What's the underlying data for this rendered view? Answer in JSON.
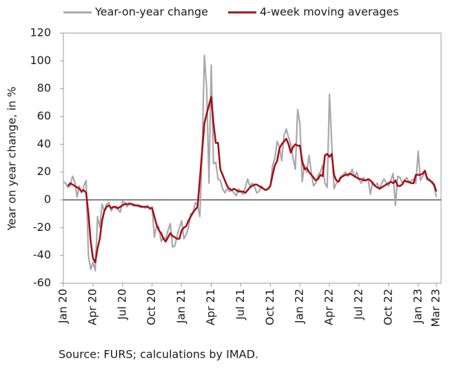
{
  "chart_data": {
    "type": "line",
    "y_label": "Year on year change, in %",
    "source": "Source: FURS; calculations by IMAD.",
    "categories": [
      "Jan 20",
      null,
      null,
      null,
      null,
      null,
      null,
      null,
      null,
      null,
      null,
      null,
      null,
      "Apr 20",
      null,
      null,
      null,
      null,
      null,
      null,
      null,
      null,
      null,
      null,
      null,
      null,
      "Jul 20",
      null,
      null,
      null,
      null,
      null,
      null,
      null,
      null,
      null,
      null,
      null,
      null,
      "Oct 20",
      null,
      null,
      null,
      null,
      null,
      null,
      null,
      null,
      null,
      null,
      null,
      null,
      "Jan 21",
      null,
      null,
      null,
      null,
      null,
      null,
      null,
      null,
      null,
      null,
      null,
      null,
      "Apr 21",
      null,
      null,
      null,
      null,
      null,
      null,
      null,
      null,
      null,
      null,
      null,
      null,
      "Jul 21",
      null,
      null,
      null,
      null,
      null,
      null,
      null,
      null,
      null,
      null,
      null,
      null,
      "Oct 21",
      null,
      null,
      null,
      null,
      null,
      null,
      null,
      null,
      null,
      null,
      null,
      null,
      "Jan 22",
      null,
      null,
      null,
      null,
      null,
      null,
      null,
      null,
      null,
      null,
      null,
      null,
      "Apr 22",
      null,
      null,
      null,
      null,
      null,
      null,
      null,
      null,
      null,
      null,
      null,
      null,
      "Jul 22",
      null,
      null,
      null,
      null,
      null,
      null,
      null,
      null,
      null,
      null,
      null,
      null,
      "Oct 22",
      null,
      null,
      null,
      null,
      null,
      null,
      null,
      null,
      null,
      null,
      null,
      null,
      "Jan 23",
      null,
      null,
      null,
      null,
      null,
      null,
      null,
      "Mar 23"
    ],
    "series": [
      {
        "name": "Year-on-year change",
        "color": "#a6a8ab",
        "width": 2.2,
        "values": [
          13,
          12,
          9,
          10,
          17,
          13,
          2,
          10,
          5,
          10,
          14,
          -40,
          -50,
          -45,
          -51,
          -12,
          -20,
          -3,
          -8,
          -3,
          -2,
          -8,
          -5,
          -6,
          -7,
          -9,
          -1,
          -2,
          -5,
          -2,
          -3,
          -3,
          -4,
          -5,
          -4,
          -5,
          -6,
          -4,
          -7,
          -5,
          -27,
          -18,
          -20,
          -30,
          -27,
          -28,
          -22,
          -17,
          -34,
          -33,
          -26,
          -20,
          -15,
          -28,
          -25,
          -20,
          -10,
          -10,
          -2,
          -4,
          -12,
          35,
          104,
          80,
          12,
          97,
          26,
          27,
          15,
          14,
          8,
          5,
          8,
          6,
          7,
          5,
          3,
          8,
          6,
          4,
          9,
          15,
          10,
          12,
          10,
          5,
          6,
          10,
          8,
          7,
          8,
          10,
          25,
          30,
          42,
          38,
          28,
          46,
          51,
          45,
          40,
          30,
          22,
          65,
          55,
          13,
          25,
          20,
          32,
          20,
          10,
          12,
          18,
          20,
          25,
          12,
          9,
          76,
          40,
          8,
          12,
          14,
          17,
          18,
          20,
          17,
          18,
          22,
          16,
          20,
          15,
          12,
          16,
          14,
          15,
          4,
          13,
          10,
          12,
          8,
          12,
          15,
          12,
          10,
          14,
          19,
          -4,
          17,
          16,
          12,
          14,
          16,
          12,
          14,
          15,
          12,
          35,
          14,
          17,
          20,
          16,
          15,
          12,
          10,
          2
        ]
      },
      {
        "name": "4-week moving averages",
        "color": "#a50f15",
        "width": 2.6,
        "values": [
          null,
          null,
          10,
          12,
          11,
          10,
          9,
          8,
          6,
          7,
          5,
          -10,
          -30,
          -42,
          -45,
          -35,
          -28,
          -15,
          -8,
          -5,
          -4,
          -6,
          -5,
          -5,
          -6,
          -5,
          -4,
          -3,
          -3,
          -3,
          -3,
          -4,
          -4,
          -4,
          -5,
          -5,
          -5,
          -5,
          -6,
          -6,
          -12,
          -18,
          -22,
          -24,
          -28,
          -30,
          -27,
          -24,
          -26,
          -27,
          -28,
          -28,
          -22,
          -20,
          -19,
          -15,
          -12,
          -9,
          -7,
          -5,
          15,
          35,
          55,
          62,
          68,
          74,
          55,
          41,
          41,
          22,
          18,
          14,
          10,
          8,
          7,
          8,
          7,
          6,
          6,
          6,
          5,
          7,
          9,
          10,
          11,
          11,
          10,
          9,
          8,
          7,
          8,
          10,
          18,
          25,
          28,
          37,
          40,
          42,
          44,
          40,
          34,
          38,
          40,
          39,
          39,
          28,
          22,
          23,
          20,
          18,
          16,
          14,
          15,
          18,
          17,
          32,
          33,
          31,
          33,
          18,
          14,
          13,
          16,
          17,
          18,
          18,
          19,
          18,
          17,
          16,
          15,
          15,
          14,
          14,
          15,
          14,
          12,
          10,
          9,
          8,
          9,
          10,
          11,
          12,
          13,
          12,
          14,
          10,
          10,
          11,
          14,
          13,
          13,
          12,
          12,
          18,
          18,
          18,
          19,
          21,
          15,
          14,
          13,
          11,
          6
        ]
      }
    ],
    "ylim": [
      -60,
      120
    ],
    "yticks": [
      -60,
      -40,
      -20,
      0,
      20,
      40,
      60,
      80,
      100,
      120
    ],
    "zero_line": true
  }
}
